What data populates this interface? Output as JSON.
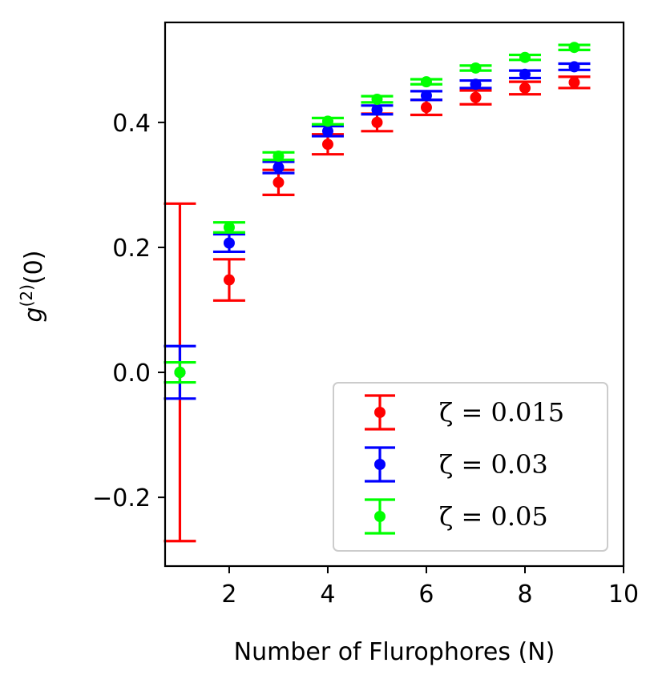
{
  "chart_data": {
    "type": "scatter",
    "xlabel": "Number of Flurophores (N)",
    "ylabel_base": "g",
    "ylabel_sup": "(2)",
    "ylabel_tail": "(0)",
    "xlim": [
      0.7,
      10
    ],
    "ylim": [
      -0.31,
      0.56
    ],
    "xticks": [
      2,
      4,
      6,
      8,
      10
    ],
    "yticks": [
      -0.2,
      0.0,
      0.2,
      0.4
    ],
    "xtick_labels": [
      "2",
      "4",
      "6",
      "8",
      "10"
    ],
    "ytick_labels": [
      "−0.2",
      "0.0",
      "0.2",
      "0.4"
    ],
    "grid": false,
    "legend_position": "lower-right",
    "series": [
      {
        "name": "ζ = 0.015",
        "color": "#ff0000",
        "points": [
          {
            "x": 1,
            "y": 0.0,
            "err": 0.27
          },
          {
            "x": 2,
            "y": 0.148,
            "err": 0.033
          },
          {
            "x": 3,
            "y": 0.304,
            "err": 0.02
          },
          {
            "x": 4,
            "y": 0.365,
            "err": 0.016
          },
          {
            "x": 5,
            "y": 0.4,
            "err": 0.014
          },
          {
            "x": 6,
            "y": 0.424,
            "err": 0.012
          },
          {
            "x": 7,
            "y": 0.44,
            "err": 0.011
          },
          {
            "x": 8,
            "y": 0.455,
            "err": 0.01
          },
          {
            "x": 9,
            "y": 0.464,
            "err": 0.009
          }
        ]
      },
      {
        "name": "ζ = 0.03",
        "color": "#0000ff",
        "points": [
          {
            "x": 1,
            "y": 0.0,
            "err": 0.042
          },
          {
            "x": 2,
            "y": 0.207,
            "err": 0.014
          },
          {
            "x": 3,
            "y": 0.328,
            "err": 0.009
          },
          {
            "x": 4,
            "y": 0.386,
            "err": 0.008
          },
          {
            "x": 5,
            "y": 0.42,
            "err": 0.007
          },
          {
            "x": 6,
            "y": 0.443,
            "err": 0.007
          },
          {
            "x": 7,
            "y": 0.461,
            "err": 0.006
          },
          {
            "x": 8,
            "y": 0.477,
            "err": 0.006
          },
          {
            "x": 9,
            "y": 0.489,
            "err": 0.005
          }
        ]
      },
      {
        "name": "ζ = 0.05",
        "color": "#00ff00",
        "points": [
          {
            "x": 1,
            "y": 0.0,
            "err": 0.016
          },
          {
            "x": 2,
            "y": 0.232,
            "err": 0.008
          },
          {
            "x": 3,
            "y": 0.346,
            "err": 0.006
          },
          {
            "x": 4,
            "y": 0.402,
            "err": 0.005
          },
          {
            "x": 5,
            "y": 0.437,
            "err": 0.005
          },
          {
            "x": 6,
            "y": 0.465,
            "err": 0.004
          },
          {
            "x": 7,
            "y": 0.487,
            "err": 0.004
          },
          {
            "x": 8,
            "y": 0.504,
            "err": 0.004
          },
          {
            "x": 9,
            "y": 0.52,
            "err": 0.004
          }
        ]
      }
    ]
  }
}
